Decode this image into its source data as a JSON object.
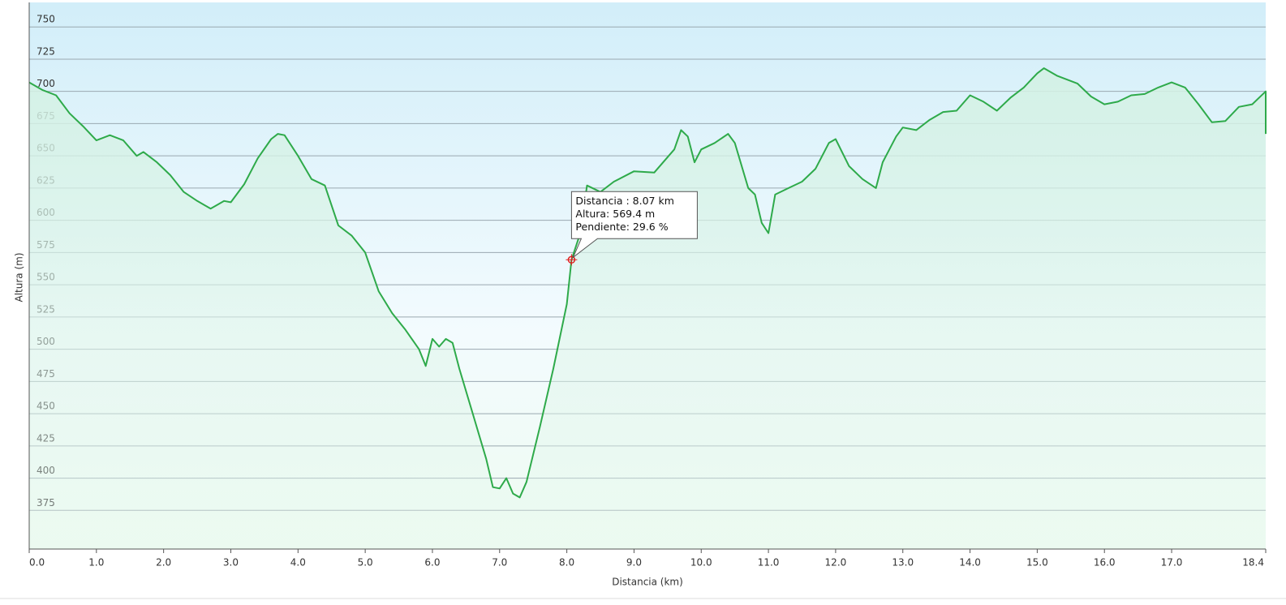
{
  "chart_data": {
    "type": "line",
    "x_label": "Distancia  (km)",
    "y_label": "Altura (m)",
    "x": [
      0.0,
      0.2,
      0.4,
      0.6,
      0.8,
      1.0,
      1.2,
      1.4,
      1.6,
      1.7,
      1.9,
      2.1,
      2.3,
      2.5,
      2.7,
      2.9,
      3.0,
      3.2,
      3.4,
      3.6,
      3.7,
      3.8,
      4.0,
      4.2,
      4.4,
      4.6,
      4.8,
      5.0,
      5.2,
      5.4,
      5.6,
      5.8,
      5.9,
      6.0,
      6.1,
      6.2,
      6.3,
      6.4,
      6.6,
      6.8,
      6.9,
      7.0,
      7.1,
      7.2,
      7.3,
      7.4,
      7.6,
      7.8,
      8.0,
      8.07,
      8.2,
      8.3,
      8.5,
      8.7,
      9.0,
      9.3,
      9.6,
      9.7,
      9.8,
      9.9,
      10.0,
      10.2,
      10.4,
      10.5,
      10.7,
      10.8,
      10.9,
      11.0,
      11.1,
      11.3,
      11.5,
      11.7,
      11.9,
      12.0,
      12.2,
      12.4,
      12.6,
      12.7,
      12.8,
      12.9,
      13.0,
      13.2,
      13.4,
      13.6,
      13.8,
      14.0,
      14.2,
      14.4,
      14.6,
      14.8,
      15.0,
      15.1,
      15.3,
      15.6,
      15.8,
      16.0,
      16.2,
      16.4,
      16.6,
      16.8,
      17.0,
      17.2,
      17.4,
      17.6,
      17.8,
      18.0,
      18.2,
      18.4,
      18.4
    ],
    "series": [
      {
        "name": "Altura",
        "color": "#2eaa4a",
        "values": [
          707,
          701,
          697,
          683,
          673,
          662,
          666,
          662,
          650,
          653,
          645,
          635,
          622,
          615,
          609,
          615,
          614,
          628,
          648,
          663,
          667,
          666,
          650,
          632,
          627,
          596,
          588,
          575,
          545,
          528,
          515,
          500,
          487,
          508,
          502,
          508,
          505,
          485,
          450,
          415,
          393,
          392,
          400,
          388,
          385,
          397,
          440,
          485,
          535,
          569.4,
          590,
          627,
          622,
          630,
          638,
          637,
          655,
          670,
          665,
          645,
          655,
          660,
          667,
          660,
          625,
          620,
          598,
          590,
          620,
          625,
          630,
          640,
          660,
          663,
          642,
          632,
          625,
          645,
          655,
          665,
          672,
          670,
          678,
          684,
          685,
          697,
          692,
          685,
          695,
          703,
          714,
          718,
          712,
          706,
          696,
          690,
          692,
          697,
          698,
          703,
          707,
          703,
          690,
          676,
          677,
          688,
          690,
          700,
          667
        ]
      }
    ],
    "xlim": [
      0,
      18.4
    ],
    "ylim": [
      345,
      769
    ],
    "xticks": [
      {
        "value": 0,
        "label": "0.0"
      },
      {
        "value": 1,
        "label": "1.0"
      },
      {
        "value": 2,
        "label": "2.0"
      },
      {
        "value": 3,
        "label": "3.0"
      },
      {
        "value": 4,
        "label": "4.0"
      },
      {
        "value": 5,
        "label": "5.0"
      },
      {
        "value": 6,
        "label": "6.0"
      },
      {
        "value": 7,
        "label": "7.0"
      },
      {
        "value": 8,
        "label": "8.0"
      },
      {
        "value": 9,
        "label": "9.0"
      },
      {
        "value": 10,
        "label": "10.0"
      },
      {
        "value": 11,
        "label": "11.0"
      },
      {
        "value": 12,
        "label": "12.0"
      },
      {
        "value": 13,
        "label": "13.0"
      },
      {
        "value": 14,
        "label": "14.0"
      },
      {
        "value": 15,
        "label": "15.0"
      },
      {
        "value": 16,
        "label": "16.0"
      },
      {
        "value": 17,
        "label": "17.0"
      },
      18.4
    ],
    "yticks": [
      375,
      400,
      425,
      450,
      475,
      500,
      525,
      550,
      575,
      600,
      625,
      650,
      675,
      700,
      725,
      750
    ],
    "grid": true,
    "marker": {
      "x": 8.07,
      "y": 569.4,
      "color": "#e02020"
    },
    "tooltip": [
      "Distancia : 8.07 km",
      "Altura: 569.4 m",
      "Pendiente: 29.6 %"
    ]
  }
}
